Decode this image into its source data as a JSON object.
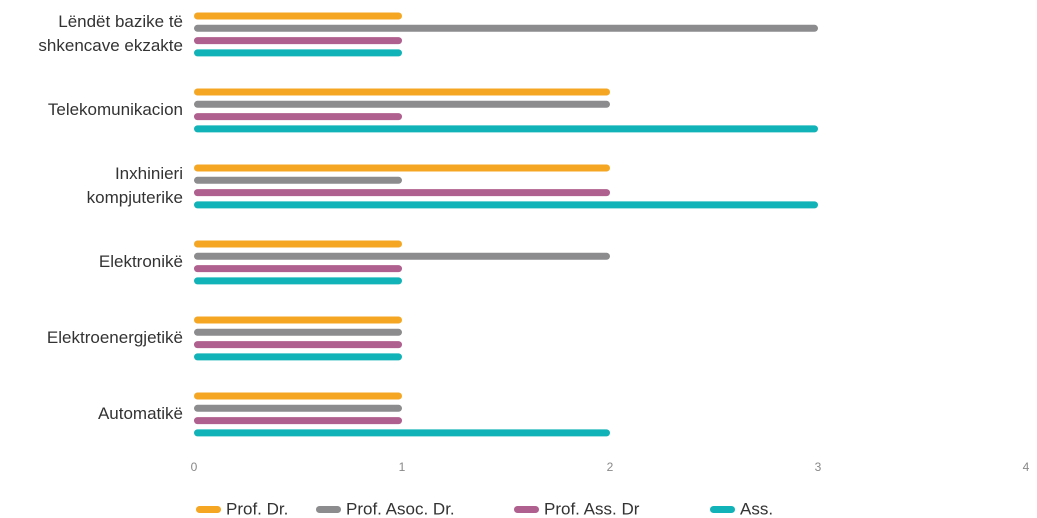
{
  "chart_data": {
    "type": "bar",
    "orientation": "horizontal",
    "categories": [
      [
        "Lëndët bazike të",
        "shkencave ekzakte"
      ],
      [
        "Telekomunikacion"
      ],
      [
        "Inxhinieri",
        "kompjuterike"
      ],
      [
        "Elektronikë"
      ],
      [
        "Elektroenergjetikë"
      ],
      [
        "Automatikë"
      ]
    ],
    "series": [
      {
        "name": "Prof. Dr.",
        "color": "#F5A623",
        "values": [
          1,
          2,
          2,
          1,
          1,
          1
        ]
      },
      {
        "name": "Prof. Asoc. Dr.",
        "color": "#8C8C8E",
        "values": [
          3,
          2,
          1,
          2,
          1,
          1
        ]
      },
      {
        "name": "Prof. Ass. Dr",
        "color": "#B0608E",
        "values": [
          1,
          1,
          2,
          1,
          1,
          1
        ]
      },
      {
        "name": "Ass.",
        "color": "#12B3B8",
        "values": [
          1,
          3,
          3,
          1,
          1,
          2
        ]
      }
    ],
    "xlim": [
      0,
      4
    ],
    "xticks": [
      "0",
      "1",
      "2",
      "3",
      "4"
    ],
    "grid": false,
    "legend_position": "bottom"
  }
}
